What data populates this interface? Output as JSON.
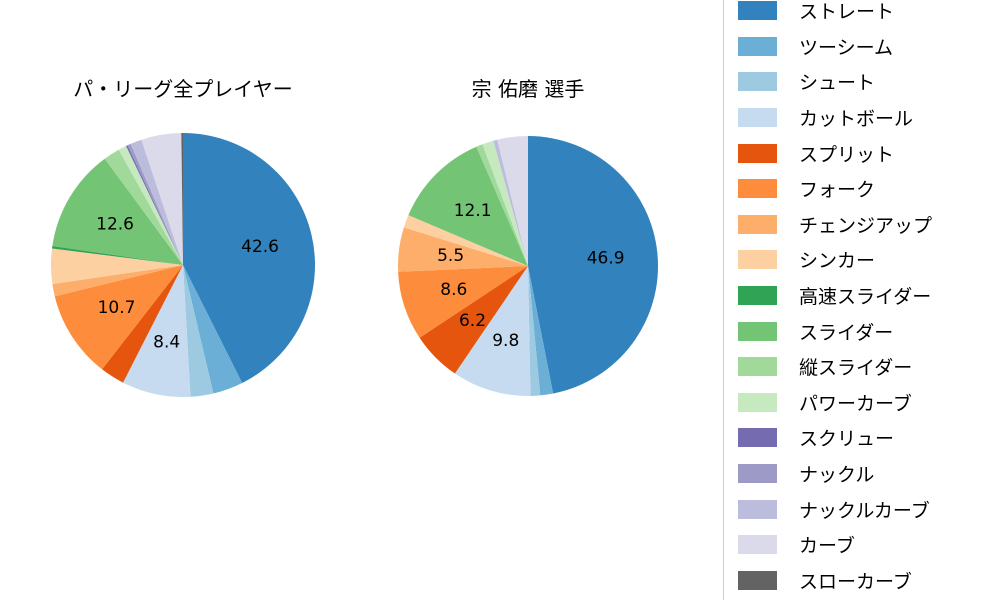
{
  "figure": {
    "background": "#ffffff"
  },
  "chart_data": {
    "type": "pie",
    "categories": [
      "ストレート",
      "ツーシーム",
      "シュート",
      "カットボール",
      "スプリット",
      "フォーク",
      "チェンジアップ",
      "シンカー",
      "高速スライダー",
      "スライダー",
      "縦スライダー",
      "パワーカーブ",
      "スクリュー",
      "ナックル",
      "ナックルカーブ",
      "カーブ",
      "スローカーブ"
    ],
    "colors": [
      "#3182bd",
      "#6baed6",
      "#9ecae1",
      "#c6dbef",
      "#e6550d",
      "#fd8d3c",
      "#fdae6b",
      "#fdd0a2",
      "#31a354",
      "#74c476",
      "#a1d99b",
      "#c7e9c0",
      "#756bb1",
      "#9e9ac8",
      "#bcbddc",
      "#dadaeb",
      "#636363"
    ],
    "series": [
      {
        "name": "パ・リーグ全プレイヤー",
        "values": [
          42.6,
          3.7,
          2.8,
          8.4,
          3.0,
          10.7,
          1.5,
          4.3,
          0.3,
          12.6,
          2.0,
          1.0,
          0.2,
          0.4,
          1.4,
          4.9,
          0.2
        ],
        "shown_labels": [
          "42.6",
          "8.4",
          "10.7",
          "12.6"
        ]
      },
      {
        "name": "宗 佑磨  選手",
        "values": [
          46.9,
          1.6,
          1.2,
          9.8,
          6.2,
          8.6,
          5.5,
          1.6,
          0,
          12.1,
          0.8,
          1.4,
          0,
          0,
          0.5,
          3.8,
          0
        ],
        "shown_labels": [
          "46.9",
          "9.8",
          "6.2",
          "8.6",
          "5.5",
          "12.1"
        ]
      }
    ],
    "label_threshold": 5,
    "label_distance_ratio": 0.6,
    "start_angle_deg": 90,
    "clockwise": true,
    "legend_position": "right"
  }
}
